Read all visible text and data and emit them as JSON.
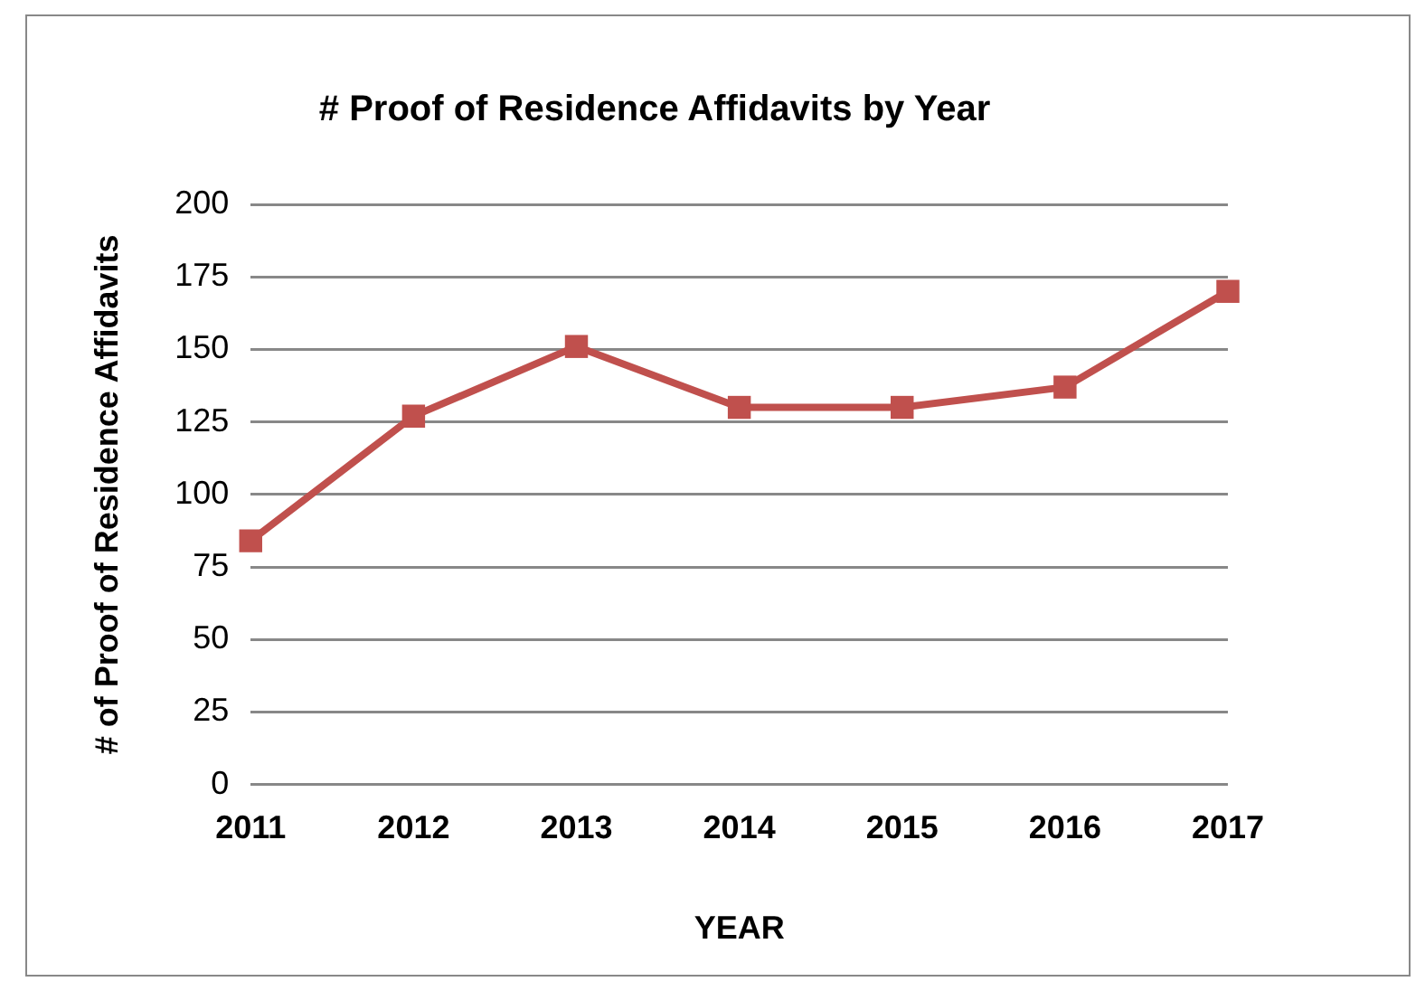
{
  "chart_data": {
    "type": "line",
    "title": "# Proof of Residence Affidavits by Year",
    "xlabel": "YEAR",
    "ylabel": "# of Proof of Residence Affidavits",
    "categories": [
      "2011",
      "2012",
      "2013",
      "2014",
      "2015",
      "2016",
      "2017"
    ],
    "series": [
      {
        "color": "#c0504d",
        "values": [
          84,
          127,
          151,
          130,
          130,
          137,
          170
        ]
      }
    ],
    "ylim": [
      0,
      200
    ],
    "yticks": [
      0,
      25,
      50,
      75,
      100,
      125,
      150,
      175,
      200
    ],
    "grid": "y",
    "legend": false,
    "marker": "square",
    "line_style": "solid"
  }
}
